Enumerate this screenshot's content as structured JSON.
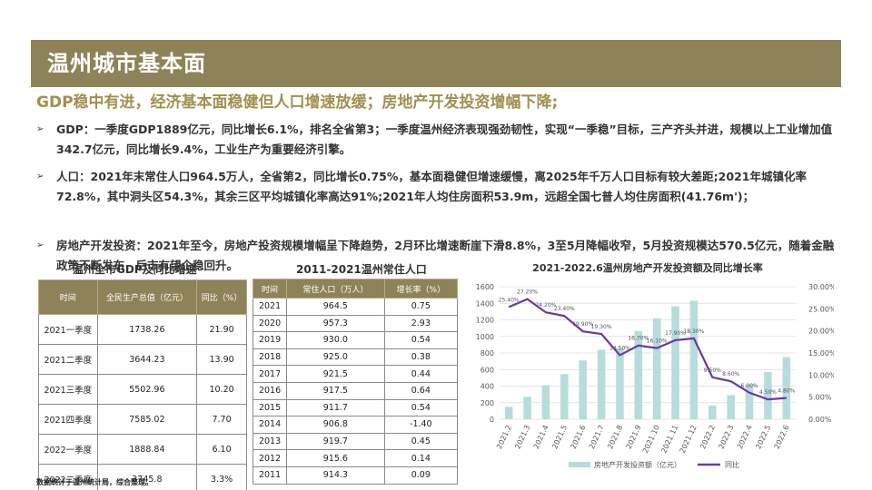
{
  "title": "温州城市基本面",
  "subtitle": "GDP稳中有进，经济基本面稳健但人口增速放缓；房地产开发投资增幅下降;",
  "bullets": [
    {
      "text": "GDP：一季度GDP1889亿元，同比增长6.1%，排名全省第3；一季度温州经济表现强劲韧性，实现“一季稳”目标，三产齐头并进，规模以上工业增加值342.7亿元，同比增长9.4%，工业生产为重要经济引擎。"
    },
    {
      "text": "人口：2021年末常住人口964.5万人，全省第2，同比增长0.75%，基本面稳健但增速缓慢，离2025年千万人口目标有较大差距;2021年城镇化率72.8%，其中洞头区54.3%，其余三区平均城镇化率高达91%;2021年人均住房面积53.9m，远超全国七普人均住房面积(41.76m')；"
    },
    {
      "text": "房地产开发投资：2021年至今，房地产投资规模增幅呈下降趋势，2月环比增速断崖下滑8.8%，3至5月降幅收窄，5月投资规模达570.5亿元，随着金融政策不断发布，后市有望企稳回升。"
    }
  ],
  "gdp_table": {
    "caption": "温州全市GDP及同比增速",
    "headers": [
      "时间",
      "全民生产总值（亿元）",
      "同比（%）"
    ],
    "rows": [
      [
        "2021一季度",
        "1738.26",
        "21.90"
      ],
      [
        "2021二季度",
        "3644.23",
        "13.90"
      ],
      [
        "2021三季度",
        "5502.96",
        "10.20"
      ],
      [
        "2021四季度",
        "7585.02",
        "7.70"
      ],
      [
        "2022一季度",
        "1888.84",
        "6.10"
      ],
      [
        "2022二季度",
        "3745.8",
        "3.3%"
      ]
    ]
  },
  "pop_table": {
    "caption": "2011-2021温州常住人口",
    "headers": [
      "时间",
      "常住人口（万人）",
      "增长率（%）"
    ],
    "rows": [
      [
        "2021",
        "964.5",
        "0.75"
      ],
      [
        "2020",
        "957.3",
        "2.93"
      ],
      [
        "2019",
        "930.0",
        "0.54"
      ],
      [
        "2018",
        "925.0",
        "0.38"
      ],
      [
        "2017",
        "921.5",
        "0.44"
      ],
      [
        "2016",
        "917.5",
        "0.64"
      ],
      [
        "2015",
        "911.7",
        "0.54"
      ],
      [
        "2014",
        "906.8",
        "-1.40"
      ],
      [
        "2013",
        "919.7",
        "0.45"
      ],
      [
        "2012",
        "915.6",
        "0.14"
      ],
      [
        "2011",
        "914.3",
        "0.09"
      ]
    ]
  },
  "footnote": "数据统计于温州统计局，综合整理。",
  "colors": {
    "accent": "#8e8358",
    "bar": "#b7dcdc",
    "line": "#6a3aa0"
  },
  "chart_data": {
    "type": "bar",
    "title": "2021-2022.6温州房地产开发投资额及同比增长率",
    "categories": [
      "2021.2",
      "2021.3",
      "2021.4",
      "2021.5",
      "2021.6",
      "2021.7",
      "2021.8",
      "2021.9",
      "2021.10",
      "2021.11",
      "2021.12",
      "2022.2",
      "2022.3",
      "2022.4",
      "2022.5",
      "2022.6"
    ],
    "series": [
      {
        "name": "房地产开发投资额（亿元）",
        "type": "bar",
        "axis": "left",
        "values": [
          150,
          270,
          410,
          545,
          710,
          840,
          860,
          1065,
          1220,
          1365,
          1430,
          165,
          290,
          420,
          570.5,
          750
        ]
      },
      {
        "name": "同比",
        "type": "line",
        "axis": "right",
        "values": [
          25.4,
          27.2,
          24.2,
          23.4,
          19.9,
          19.3,
          14.5,
          16.7,
          16.1,
          17.9,
          18.3,
          9.5,
          8.6,
          6.0,
          4.5,
          4.8
        ],
        "labels": [
          "25.40%",
          "27.20%",
          "24.20%",
          "23.40%",
          "19.90%",
          "19.30%",
          "14.50%",
          "16.70%",
          "16.10%",
          "17.90%",
          "18.30%",
          "9.50%",
          "8.60%",
          "6.00%",
          "4.50%",
          "4.80%"
        ]
      }
    ],
    "y_left": {
      "min": 0,
      "max": 1600,
      "ticks": [
        "0",
        "200",
        "400",
        "600",
        "800",
        "1000",
        "1200",
        "1400",
        "1600"
      ]
    },
    "y_right": {
      "min": 0,
      "max": 30,
      "ticks": [
        "0.00%",
        "5.00%",
        "10.00%",
        "15.00%",
        "20.00%",
        "25.00%",
        "30.00%"
      ]
    },
    "legend_position": "bottom",
    "grid": true
  }
}
